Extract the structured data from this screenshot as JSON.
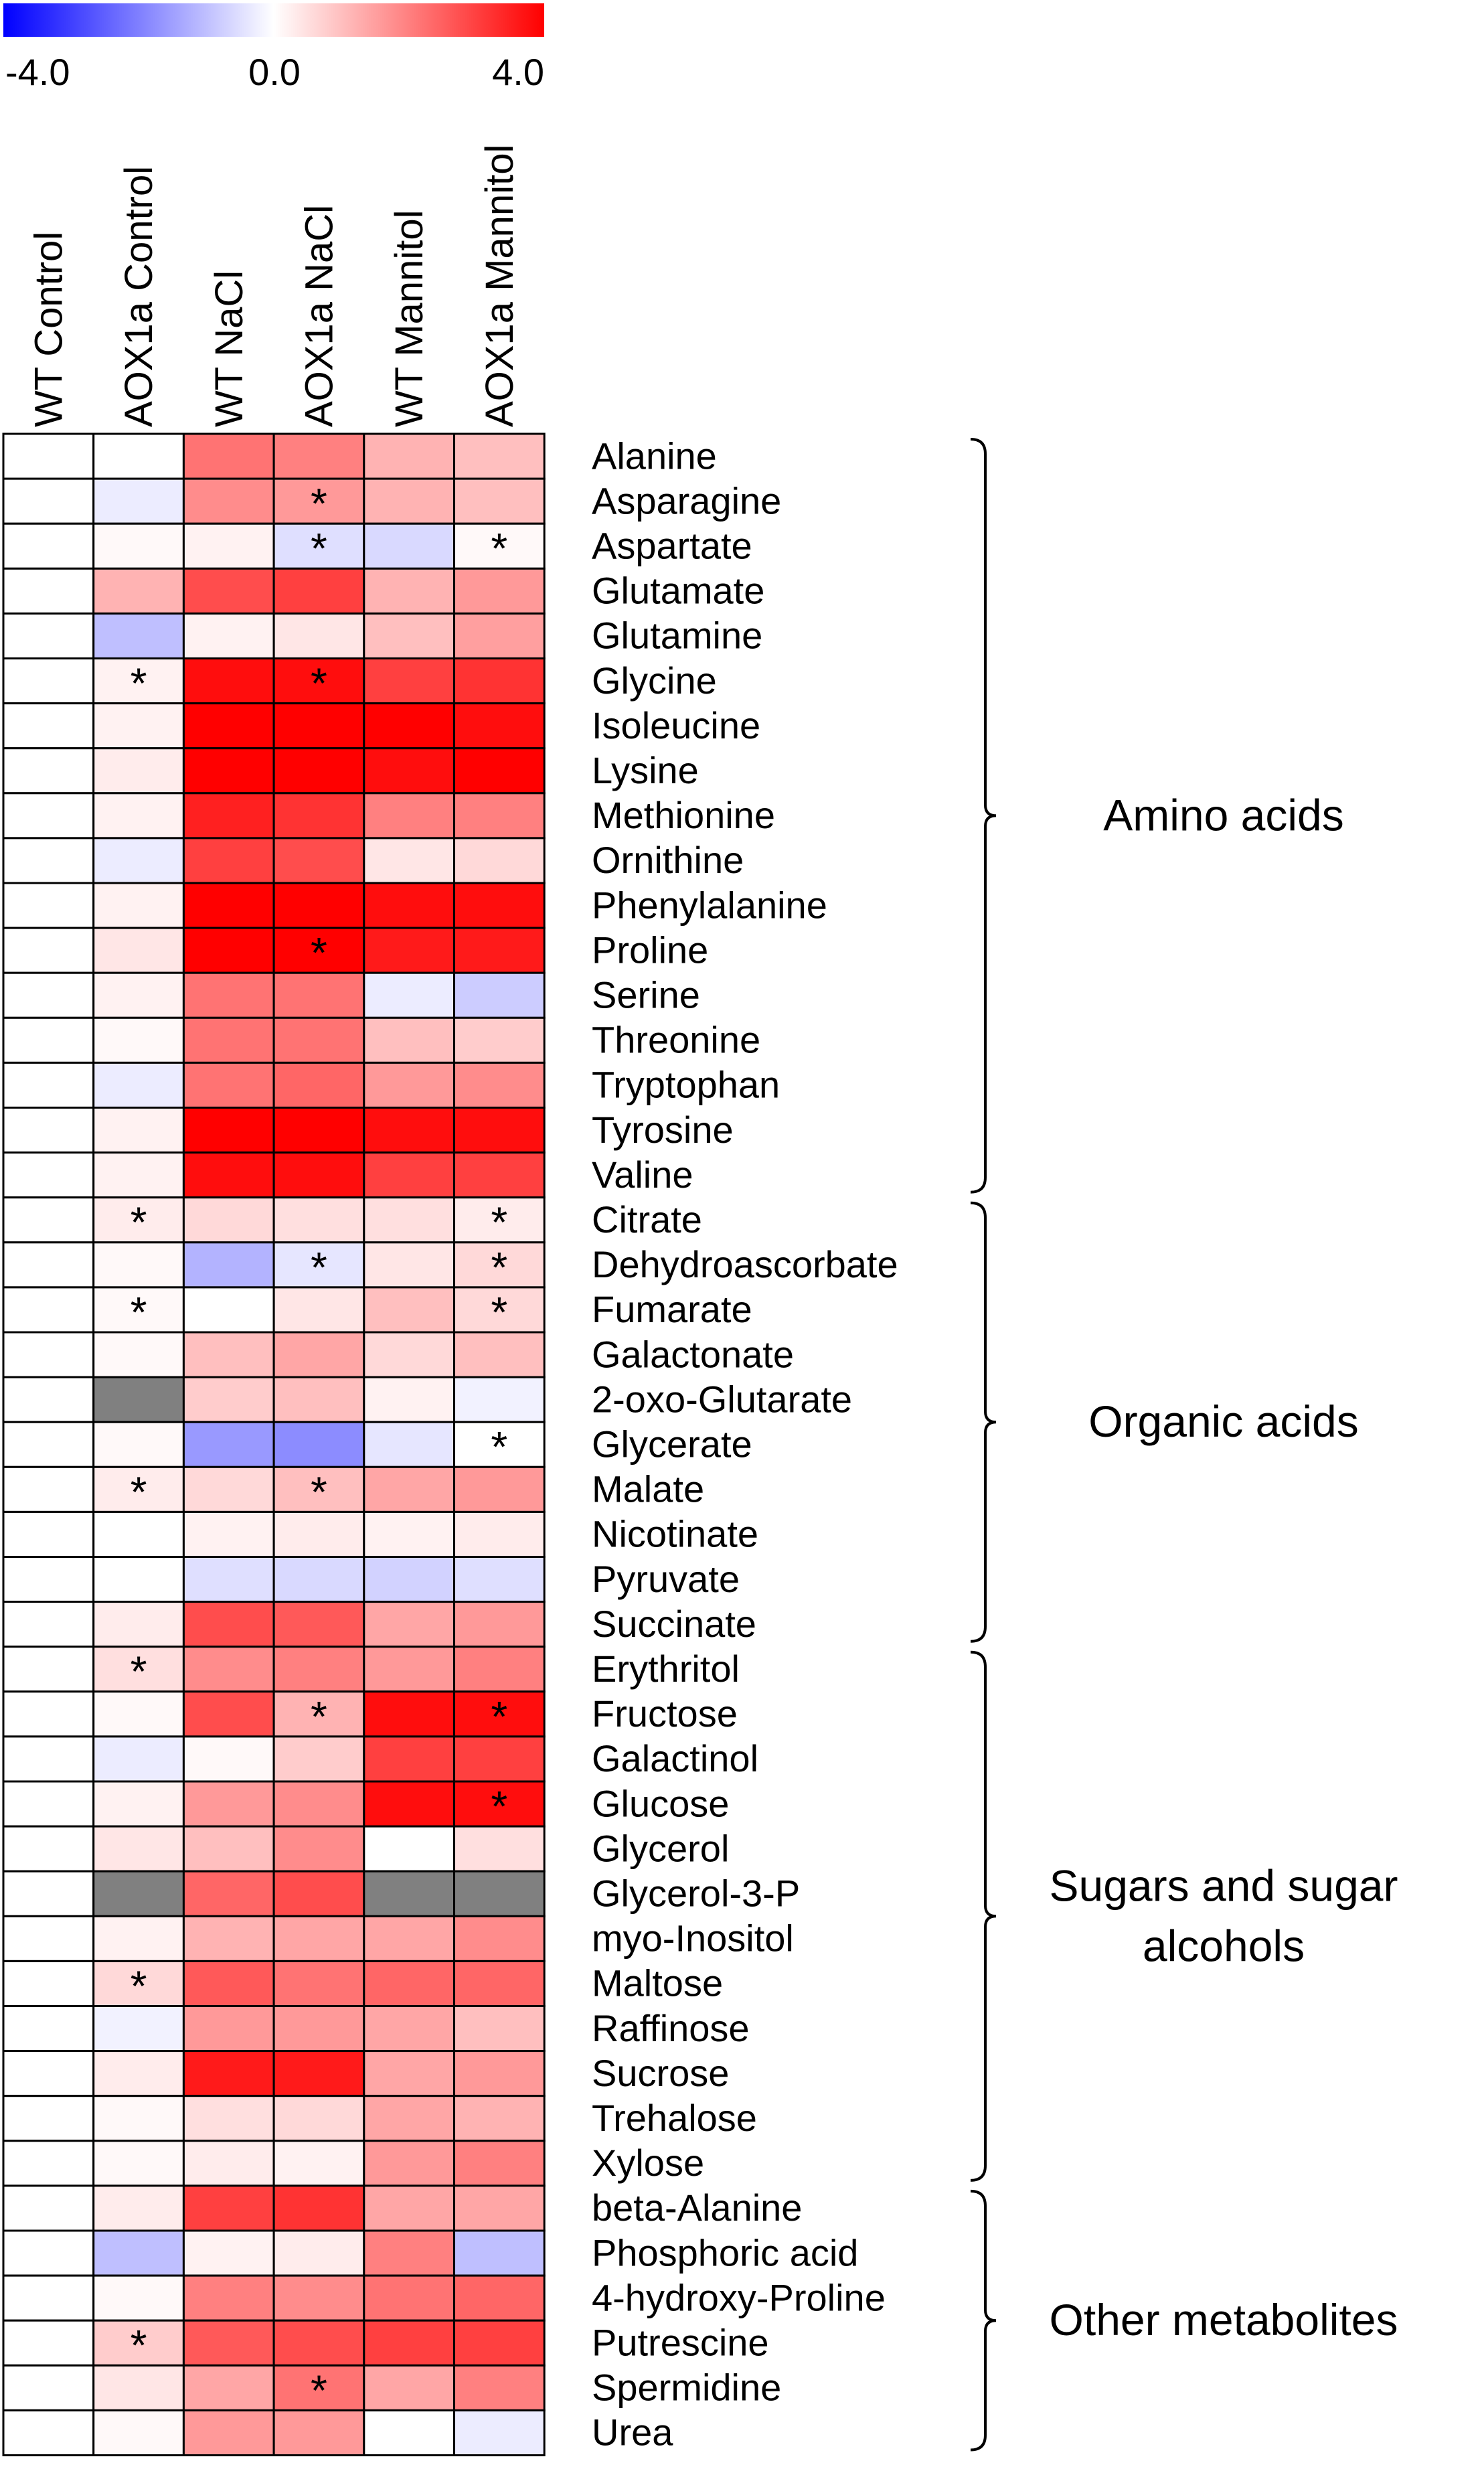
{
  "chart_data": {
    "type": "heatmap",
    "color_scale": {
      "min": -4.0,
      "mid": 0.0,
      "max": 4.0,
      "tick_labels": [
        "-4.0",
        "0.0",
        "4.0"
      ],
      "colors": {
        "low": "#0000ff",
        "mid": "#ffffff",
        "high": "#ff0000",
        "missing": "#808080"
      }
    },
    "columns": [
      "WT Control",
      "AOX1a Control",
      "WT NaCl",
      "AOX1a NaCl",
      "WT Mannitol",
      "AOX1a Mannitol"
    ],
    "rows": [
      {
        "label": "Alanine",
        "values": [
          0,
          0,
          2.2,
          2.0,
          1.2,
          1.0
        ],
        "stars": [
          false,
          false,
          false,
          false,
          false,
          false
        ]
      },
      {
        "label": "Asparagine",
        "values": [
          0,
          -0.3,
          1.8,
          1.6,
          1.2,
          1.0
        ],
        "stars": [
          false,
          false,
          false,
          true,
          false,
          false
        ]
      },
      {
        "label": "Aspartate",
        "values": [
          0,
          0.1,
          0.2,
          -0.5,
          -0.6,
          0.1
        ],
        "stars": [
          false,
          false,
          false,
          true,
          false,
          true
        ]
      },
      {
        "label": "Glutamate",
        "values": [
          0,
          1.2,
          2.8,
          3.0,
          1.2,
          1.6
        ],
        "stars": [
          false,
          false,
          false,
          false,
          false,
          false
        ]
      },
      {
        "label": "Glutamine",
        "values": [
          0,
          -1.0,
          0.2,
          0.4,
          1.0,
          1.5
        ],
        "stars": [
          false,
          false,
          false,
          false,
          false,
          false
        ]
      },
      {
        "label": "Glycine",
        "values": [
          0,
          0.2,
          3.8,
          3.8,
          3.0,
          3.2
        ],
        "stars": [
          false,
          true,
          false,
          true,
          false,
          false
        ]
      },
      {
        "label": "Isoleucine",
        "values": [
          0,
          0.2,
          4.0,
          4.0,
          4.0,
          3.8
        ],
        "stars": [
          false,
          false,
          false,
          false,
          false,
          false
        ]
      },
      {
        "label": "Lysine",
        "values": [
          0,
          0.3,
          4.0,
          4.0,
          3.8,
          4.0
        ],
        "stars": [
          false,
          false,
          false,
          false,
          false,
          false
        ]
      },
      {
        "label": "Methionine",
        "values": [
          0,
          0.2,
          3.5,
          3.2,
          2.0,
          2.0
        ],
        "stars": [
          false,
          false,
          false,
          false,
          false,
          false
        ]
      },
      {
        "label": "Ornithine",
        "values": [
          0,
          -0.3,
          3.0,
          2.8,
          0.4,
          0.6
        ],
        "stars": [
          false,
          false,
          false,
          false,
          false,
          false
        ]
      },
      {
        "label": "Phenylalanine",
        "values": [
          0,
          0.2,
          4.0,
          4.0,
          3.8,
          3.8
        ],
        "stars": [
          false,
          false,
          false,
          false,
          false,
          false
        ]
      },
      {
        "label": "Proline",
        "values": [
          0,
          0.4,
          4.0,
          4.0,
          3.6,
          3.6
        ],
        "stars": [
          false,
          false,
          false,
          true,
          false,
          false
        ]
      },
      {
        "label": "Serine",
        "values": [
          0,
          0.2,
          2.2,
          2.2,
          -0.3,
          -0.8
        ],
        "stars": [
          false,
          false,
          false,
          false,
          false,
          false
        ]
      },
      {
        "label": "Threonine",
        "values": [
          0,
          0.1,
          2.2,
          2.2,
          1.0,
          0.8
        ],
        "stars": [
          false,
          false,
          false,
          false,
          false,
          false
        ]
      },
      {
        "label": "Tryptophan",
        "values": [
          0,
          -0.3,
          2.2,
          2.4,
          1.6,
          1.8
        ],
        "stars": [
          false,
          false,
          false,
          false,
          false,
          false
        ]
      },
      {
        "label": "Tyrosine",
        "values": [
          0,
          0.2,
          4.0,
          4.0,
          3.8,
          3.8
        ],
        "stars": [
          false,
          false,
          false,
          false,
          false,
          false
        ]
      },
      {
        "label": "Valine",
        "values": [
          0,
          0.2,
          3.8,
          3.8,
          3.0,
          3.0
        ],
        "stars": [
          false,
          false,
          false,
          false,
          false,
          false
        ]
      },
      {
        "label": "Citrate",
        "values": [
          0,
          0.3,
          0.6,
          0.5,
          0.5,
          0.3
        ],
        "stars": [
          false,
          true,
          false,
          false,
          false,
          true
        ]
      },
      {
        "label": "Dehydroascorbate",
        "values": [
          0,
          0.1,
          -1.2,
          -0.4,
          0.4,
          0.6
        ],
        "stars": [
          false,
          false,
          false,
          true,
          false,
          true
        ]
      },
      {
        "label": "Fumarate",
        "values": [
          0,
          0.1,
          0.0,
          0.4,
          1.0,
          0.6
        ],
        "stars": [
          false,
          true,
          false,
          false,
          false,
          true
        ]
      },
      {
        "label": "Galactonate",
        "values": [
          0,
          0.1,
          1.0,
          1.4,
          0.6,
          1.0
        ],
        "stars": [
          false,
          false,
          false,
          false,
          false,
          false
        ]
      },
      {
        "label": "2-oxo-Glutarate",
        "values": [
          0,
          null,
          0.8,
          1.0,
          0.2,
          -0.2
        ],
        "stars": [
          false,
          false,
          false,
          false,
          false,
          false
        ]
      },
      {
        "label": "Glycerate",
        "values": [
          0,
          0.1,
          -1.6,
          -1.8,
          -0.4,
          0.0
        ],
        "stars": [
          false,
          false,
          false,
          false,
          false,
          true
        ]
      },
      {
        "label": "Malate",
        "values": [
          0,
          0.3,
          0.6,
          1.0,
          1.4,
          1.6
        ],
        "stars": [
          false,
          true,
          false,
          true,
          false,
          false
        ]
      },
      {
        "label": "Nicotinate",
        "values": [
          0,
          0.0,
          0.2,
          0.3,
          0.2,
          0.3
        ],
        "stars": [
          false,
          false,
          false,
          false,
          false,
          false
        ]
      },
      {
        "label": "Pyruvate",
        "values": [
          0,
          0.0,
          -0.5,
          -0.6,
          -0.7,
          -0.5
        ],
        "stars": [
          false,
          false,
          false,
          false,
          false,
          false
        ]
      },
      {
        "label": "Succinate",
        "values": [
          0,
          0.3,
          2.8,
          2.6,
          1.4,
          1.6
        ],
        "stars": [
          false,
          false,
          false,
          false,
          false,
          false
        ]
      },
      {
        "label": "Erythritol",
        "values": [
          0,
          0.5,
          1.8,
          2.0,
          1.6,
          2.0
        ],
        "stars": [
          false,
          true,
          false,
          false,
          false,
          false
        ]
      },
      {
        "label": "Fructose",
        "values": [
          0,
          0.1,
          2.8,
          1.2,
          3.8,
          3.8
        ],
        "stars": [
          false,
          false,
          false,
          true,
          false,
          true
        ]
      },
      {
        "label": "Galactinol",
        "values": [
          0,
          -0.3,
          0.1,
          0.8,
          3.0,
          3.0
        ],
        "stars": [
          false,
          false,
          false,
          false,
          false,
          false
        ]
      },
      {
        "label": "Glucose",
        "values": [
          0,
          0.2,
          1.6,
          1.8,
          3.8,
          3.8
        ],
        "stars": [
          false,
          false,
          false,
          false,
          false,
          true
        ]
      },
      {
        "label": "Glycerol",
        "values": [
          0,
          0.4,
          1.0,
          1.8,
          0.0,
          0.5
        ],
        "stars": [
          false,
          false,
          false,
          false,
          false,
          false
        ]
      },
      {
        "label": "Glycerol-3-P",
        "values": [
          0,
          null,
          2.4,
          2.8,
          null,
          null
        ],
        "stars": [
          false,
          false,
          false,
          false,
          false,
          false
        ]
      },
      {
        "label": "myo-Inositol",
        "values": [
          0,
          0.2,
          1.2,
          1.4,
          1.4,
          1.8
        ],
        "stars": [
          false,
          false,
          false,
          false,
          false,
          false
        ]
      },
      {
        "label": "Maltose",
        "values": [
          0,
          0.6,
          2.6,
          2.2,
          2.4,
          2.4
        ],
        "stars": [
          false,
          true,
          false,
          false,
          false,
          false
        ]
      },
      {
        "label": "Raffinose",
        "values": [
          0,
          -0.2,
          1.6,
          1.6,
          1.4,
          1.0
        ],
        "stars": [
          false,
          false,
          false,
          false,
          false,
          false
        ]
      },
      {
        "label": "Sucrose",
        "values": [
          0,
          0.3,
          3.6,
          3.6,
          1.4,
          1.6
        ],
        "stars": [
          false,
          false,
          false,
          false,
          false,
          false
        ]
      },
      {
        "label": "Trehalose",
        "values": [
          0,
          0.1,
          0.5,
          0.6,
          1.4,
          1.2
        ],
        "stars": [
          false,
          false,
          false,
          false,
          false,
          false
        ]
      },
      {
        "label": "Xylose",
        "values": [
          0,
          0.1,
          0.3,
          0.2,
          1.6,
          2.0
        ],
        "stars": [
          false,
          false,
          false,
          false,
          false,
          false
        ]
      },
      {
        "label": "beta-Alanine",
        "values": [
          0,
          0.3,
          3.0,
          3.2,
          1.4,
          1.4
        ],
        "stars": [
          false,
          false,
          false,
          false,
          false,
          false
        ]
      },
      {
        "label": "Phosphoric acid",
        "values": [
          0,
          -1.0,
          0.2,
          0.3,
          2.0,
          -1.0
        ],
        "stars": [
          false,
          false,
          false,
          false,
          false,
          false
        ]
      },
      {
        "label": "4-hydroxy-Proline",
        "values": [
          0,
          0.1,
          2.0,
          1.8,
          2.2,
          2.4
        ],
        "stars": [
          false,
          false,
          false,
          false,
          false,
          false
        ]
      },
      {
        "label": "Putrescine",
        "values": [
          0,
          0.8,
          2.6,
          2.8,
          3.0,
          3.0
        ],
        "stars": [
          false,
          true,
          false,
          false,
          false,
          false
        ]
      },
      {
        "label": "Spermidine",
        "values": [
          0,
          0.4,
          1.4,
          2.2,
          1.4,
          2.0
        ],
        "stars": [
          false,
          false,
          false,
          true,
          false,
          false
        ]
      },
      {
        "label": "Urea",
        "values": [
          0,
          0.1,
          1.6,
          1.6,
          0.0,
          -0.3
        ],
        "stars": [
          false,
          false,
          false,
          false,
          false,
          false
        ]
      }
    ],
    "groups": [
      {
        "label_lines": [
          "Amino acids"
        ],
        "start": 0,
        "end": 16
      },
      {
        "label_lines": [
          "Organic acids"
        ],
        "start": 17,
        "end": 26
      },
      {
        "label_lines": [
          "Sugars and sugar",
          "alcohols"
        ],
        "start": 27,
        "end": 38
      },
      {
        "label_lines": [
          "Other metabolites"
        ],
        "start": 39,
        "end": 44
      }
    ],
    "significance_marker": "*"
  }
}
